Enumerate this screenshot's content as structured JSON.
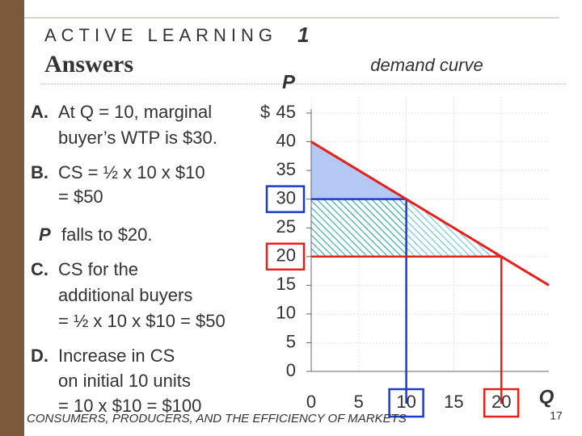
{
  "header": {
    "kicker": "ACTIVE LEARNING",
    "number": "1",
    "title": "Answers"
  },
  "answers": [
    {
      "label": "A.",
      "lines": [
        "At Q = 10, marginal",
        "buyer’s WTP is $30."
      ]
    },
    {
      "label": "B.",
      "lines": [
        "CS = ½ x 10 x $10",
        "= $50"
      ]
    },
    {
      "label": "P",
      "lines": [
        "falls to $20."
      ]
    },
    {
      "label": "C.",
      "lines": [
        "CS for the",
        "additional buyers",
        "= ½ x 10 x $10 = $50"
      ]
    },
    {
      "label": "D.",
      "lines": [
        "Increase in CS",
        "on initial 10 units",
        "= 10 x $10 = $100"
      ]
    }
  ],
  "footer": {
    "text": "CONSUMERS, PRODUCERS, AND THE EFFICIENCY OF MARKETS",
    "page": "17"
  },
  "chart_data": {
    "type": "line",
    "x_label": "Q",
    "y_label": "P",
    "y_prefix": "$",
    "x": [
      0,
      25
    ],
    "series": [
      {
        "name": "demand curve",
        "color": "#e8201c",
        "values": [
          40,
          15
        ]
      }
    ],
    "xlim": [
      0,
      25
    ],
    "ylim": [
      0,
      45
    ],
    "xticks": [
      0,
      5,
      10,
      15,
      20
    ],
    "yticks": [
      0,
      5,
      10,
      15,
      20,
      25,
      30,
      35,
      40,
      45
    ],
    "grid": true,
    "highlights": [
      {
        "x": 10,
        "y": 30,
        "color": "#1c3cc8"
      },
      {
        "x": 20,
        "y": 20,
        "color": "#e8201c"
      }
    ]
  }
}
